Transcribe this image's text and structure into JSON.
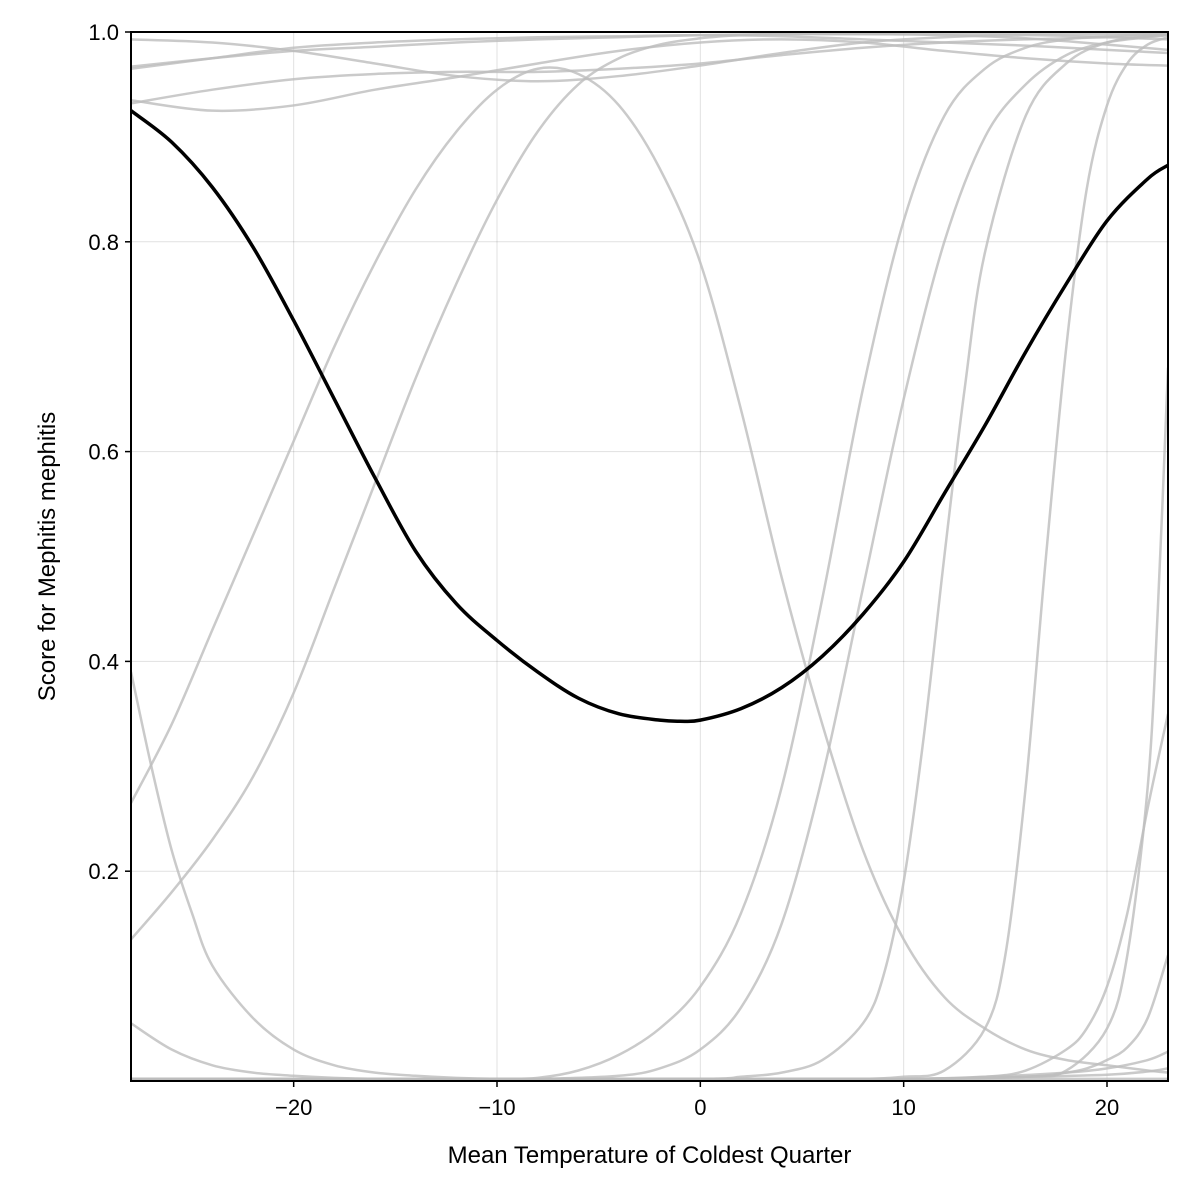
{
  "chart_data": {
    "type": "line",
    "xlabel": "Mean Temperature of Coldest Quarter",
    "ylabel": "Score for Mephitis mephitis",
    "xlim": [
      -28,
      23
    ],
    "ylim": [
      0,
      1.0
    ],
    "xticks": [
      -20,
      -10,
      0,
      10,
      20
    ],
    "xtick_labels": [
      "−20",
      "−10",
      "0",
      "10",
      "20"
    ],
    "yticks": [
      0.2,
      0.4,
      0.6,
      0.8,
      1.0
    ],
    "ytick_labels": [
      "0.2",
      "0.4",
      "0.6",
      "0.8",
      "1.0"
    ],
    "grid": true,
    "main_series": {
      "color": "#000000",
      "x": [
        -28,
        -26,
        -24,
        -22,
        -20,
        -18,
        -16,
        -14,
        -12,
        -10,
        -8,
        -6,
        -4,
        -2,
        -1,
        0,
        2,
        4,
        6,
        8,
        10,
        12,
        14,
        16,
        18,
        20,
        22,
        23
      ],
      "y": [
        0.925,
        0.895,
        0.852,
        0.795,
        0.725,
        0.65,
        0.575,
        0.505,
        0.455,
        0.42,
        0.39,
        0.365,
        0.35,
        0.344,
        0.343,
        0.344,
        0.355,
        0.375,
        0.405,
        0.445,
        0.495,
        0.56,
        0.625,
        0.695,
        0.76,
        0.82,
        0.86,
        0.873
      ]
    },
    "background_series": [
      {
        "color": "#bdbdbd",
        "x": [
          -28,
          -24,
          -20,
          -16,
          -12,
          -8,
          -4,
          0,
          4,
          8,
          12,
          16,
          20,
          23
        ],
        "y": [
          0.965,
          0.975,
          0.985,
          0.99,
          0.993,
          0.995,
          0.996,
          0.997,
          0.996,
          0.993,
          0.99,
          0.987,
          0.983,
          0.98
        ]
      },
      {
        "color": "#bdbdbd",
        "x": [
          -28,
          -24,
          -20,
          -16,
          -12,
          -8,
          -4,
          0,
          4,
          8,
          12,
          16,
          20,
          23
        ],
        "y": [
          0.967,
          0.975,
          0.982,
          0.986,
          0.99,
          0.993,
          0.995,
          0.997,
          0.998,
          0.998,
          0.997,
          0.994,
          0.988,
          0.983
        ]
      },
      {
        "color": "#bdbdbd",
        "x": [
          -28,
          -24,
          -20,
          -16,
          -12,
          -8,
          -4,
          0,
          4,
          8,
          12,
          16,
          20,
          23
        ],
        "y": [
          0.993,
          0.99,
          0.982,
          0.97,
          0.958,
          0.953,
          0.958,
          0.968,
          0.98,
          0.99,
          0.995,
          0.997,
          0.995,
          0.993
        ]
      },
      {
        "color": "#bdbdbd",
        "x": [
          -28,
          -24,
          -20,
          -16,
          -12,
          -8,
          -4,
          0,
          4,
          8,
          12,
          16,
          20,
          23
        ],
        "y": [
          0.935,
          0.925,
          0.93,
          0.945,
          0.957,
          0.97,
          0.982,
          0.99,
          0.993,
          0.99,
          0.982,
          0.975,
          0.97,
          0.968
        ]
      },
      {
        "color": "#bdbdbd",
        "x": [
          -28,
          -24,
          -20,
          -16,
          -12,
          -8,
          -4,
          0,
          4,
          8,
          12,
          16,
          20,
          23
        ],
        "y": [
          0.932,
          0.945,
          0.955,
          0.96,
          0.962,
          0.962,
          0.965,
          0.97,
          0.978,
          0.985,
          0.99,
          0.993,
          0.995,
          0.997
        ]
      },
      {
        "color": "#bdbdbd",
        "x": [
          -28,
          -26,
          -24,
          -22,
          -20,
          -18,
          -16,
          -14,
          -12,
          -10,
          -8,
          -6,
          -4,
          -2,
          0,
          2,
          4,
          6,
          8,
          10,
          12,
          14,
          16,
          18,
          20,
          22,
          23
        ],
        "y": [
          0.265,
          0.34,
          0.43,
          0.52,
          0.61,
          0.7,
          0.78,
          0.85,
          0.905,
          0.945,
          0.965,
          0.96,
          0.93,
          0.87,
          0.78,
          0.64,
          0.48,
          0.34,
          0.22,
          0.135,
          0.08,
          0.05,
          0.03,
          0.02,
          0.015,
          0.01,
          0.008
        ]
      },
      {
        "color": "#bdbdbd",
        "x": [
          -28,
          -26,
          -24,
          -22,
          -20,
          -18,
          -16,
          -14,
          -12,
          -10,
          -8,
          -6,
          -4,
          -2,
          0,
          2,
          4,
          6,
          8,
          10,
          12,
          14,
          16,
          18,
          20,
          22,
          23
        ],
        "y": [
          0.135,
          0.18,
          0.23,
          0.29,
          0.37,
          0.47,
          0.57,
          0.67,
          0.76,
          0.84,
          0.905,
          0.95,
          0.975,
          0.988,
          0.994,
          0.997,
          0.998,
          0.998,
          0.998,
          0.998,
          0.998,
          0.998,
          0.998,
          0.998,
          0.998,
          0.998,
          0.998
        ]
      },
      {
        "color": "#bdbdbd",
        "x": [
          -28,
          -27,
          -26,
          -25,
          -24,
          -22,
          -20,
          -18,
          -16,
          -14,
          -12,
          -10,
          -8,
          -6,
          -4,
          -2,
          0,
          2,
          4,
          6,
          8,
          10,
          12,
          14,
          16,
          18,
          20,
          22,
          23
        ],
        "y": [
          0.39,
          0.3,
          0.22,
          0.16,
          0.11,
          0.06,
          0.03,
          0.015,
          0.008,
          0.005,
          0.003,
          0.002,
          0.002,
          0.002,
          0.002,
          0.002,
          0.002,
          0.002,
          0.002,
          0.002,
          0.002,
          0.002,
          0.002,
          0.002,
          0.002,
          0.002,
          0.002,
          0.002,
          0.002
        ]
      },
      {
        "color": "#bdbdbd",
        "x": [
          -28,
          -26,
          -24,
          -22,
          -20,
          -18,
          -16,
          -14,
          -12,
          -10,
          -8,
          -6,
          -4,
          -2,
          0,
          2,
          4,
          6,
          8,
          10,
          12,
          14,
          16,
          18,
          20,
          22,
          23
        ],
        "y": [
          0.055,
          0.03,
          0.015,
          0.008,
          0.005,
          0.003,
          0.002,
          0.002,
          0.002,
          0.002,
          0.003,
          0.01,
          0.025,
          0.05,
          0.09,
          0.16,
          0.28,
          0.46,
          0.66,
          0.82,
          0.92,
          0.965,
          0.985,
          0.993,
          0.996,
          0.998,
          0.998
        ]
      },
      {
        "color": "#bdbdbd",
        "x": [
          -28,
          -20,
          -12,
          -8,
          -4,
          -2,
          0,
          2,
          4,
          6,
          8,
          10,
          12,
          14,
          16,
          18,
          20,
          22,
          23
        ],
        "y": [
          0.002,
          0.002,
          0.002,
          0.002,
          0.005,
          0.012,
          0.03,
          0.07,
          0.15,
          0.29,
          0.47,
          0.65,
          0.8,
          0.9,
          0.95,
          0.978,
          0.99,
          0.995,
          0.997
        ]
      },
      {
        "color": "#bdbdbd",
        "x": [
          -28,
          -20,
          -10,
          0,
          2,
          4,
          6,
          8,
          9,
          10,
          11,
          12,
          13,
          14,
          16,
          18,
          20,
          22,
          23
        ],
        "y": [
          0.002,
          0.002,
          0.002,
          0.002,
          0.004,
          0.008,
          0.02,
          0.055,
          0.1,
          0.19,
          0.33,
          0.5,
          0.66,
          0.79,
          0.92,
          0.97,
          0.99,
          0.996,
          0.998
        ]
      },
      {
        "color": "#bdbdbd",
        "x": [
          -28,
          -20,
          -10,
          0,
          4,
          8,
          10,
          12,
          14,
          15,
          16,
          17,
          18,
          19,
          20,
          21,
          22,
          23
        ],
        "y": [
          0.002,
          0.002,
          0.002,
          0.002,
          0.002,
          0.002,
          0.004,
          0.01,
          0.05,
          0.12,
          0.28,
          0.5,
          0.7,
          0.85,
          0.93,
          0.97,
          0.988,
          0.995
        ]
      },
      {
        "color": "#bdbdbd",
        "x": [
          -28,
          -10,
          0,
          10,
          14,
          16,
          18,
          19,
          20,
          21,
          22,
          23
        ],
        "y": [
          0.002,
          0.002,
          0.002,
          0.002,
          0.004,
          0.01,
          0.03,
          0.05,
          0.09,
          0.16,
          0.26,
          0.35
        ]
      },
      {
        "color": "#bdbdbd",
        "x": [
          -28,
          -10,
          0,
          10,
          16,
          18,
          20,
          21,
          22,
          22.5,
          23
        ],
        "y": [
          0.002,
          0.002,
          0.002,
          0.002,
          0.004,
          0.01,
          0.05,
          0.12,
          0.28,
          0.45,
          0.68
        ]
      },
      {
        "color": "#bdbdbd",
        "x": [
          -28,
          -10,
          0,
          10,
          16,
          18,
          19,
          20,
          21,
          22,
          23
        ],
        "y": [
          0.002,
          0.002,
          0.002,
          0.002,
          0.004,
          0.008,
          0.012,
          0.02,
          0.032,
          0.06,
          0.12
        ]
      },
      {
        "color": "#bdbdbd",
        "x": [
          -28,
          -10,
          0,
          10,
          14,
          18,
          20,
          22,
          23
        ],
        "y": [
          0.002,
          0.002,
          0.002,
          0.002,
          0.004,
          0.008,
          0.012,
          0.02,
          0.028
        ]
      },
      {
        "color": "#bdbdbd",
        "x": [
          -28,
          -10,
          0,
          10,
          16,
          20,
          22,
          23
        ],
        "y": [
          0.002,
          0.002,
          0.002,
          0.002,
          0.004,
          0.006,
          0.009,
          0.012
        ]
      }
    ]
  }
}
